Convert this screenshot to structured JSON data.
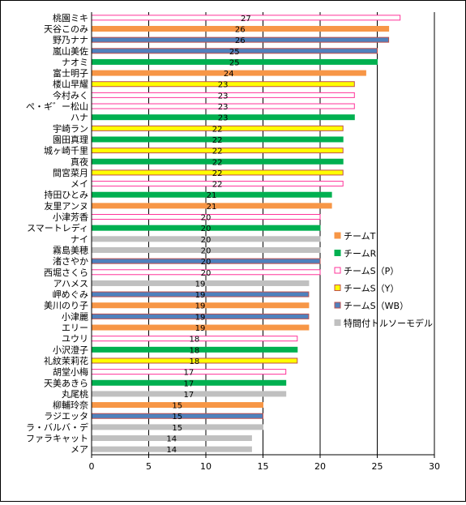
{
  "chart_data": {
    "type": "bar",
    "orientation": "horizontal",
    "xlim": [
      0,
      30
    ],
    "xticks": [
      0,
      5,
      10,
      15,
      20,
      25,
      30
    ],
    "grid": "vertical major gridlines",
    "legend_position": "right",
    "series": [
      {
        "name": "チームT",
        "color": "#F79646",
        "outline": "#F79646"
      },
      {
        "name": "チームR",
        "color": "#00B050",
        "outline": "#00B050"
      },
      {
        "name": "チームS（P）",
        "color": "#FFFFFF",
        "outline": "#FF3399"
      },
      {
        "name": "チームS（Y）",
        "color": "#FFFF00",
        "outline": "#C0504D"
      },
      {
        "name": "チームS（WB）",
        "color": "#4F81BD",
        "outline": "#C0504D"
      },
      {
        "name": "特間付トルソーモデル",
        "color": "#C0C0C0",
        "outline": "#C0C0C0"
      }
    ],
    "categories": [
      "桃園ミキ",
      "天谷このみ",
      "野乃ナナ",
      "嵐山美佐",
      "ナオミ",
      "富士明子",
      "楼山早耀",
      "今村みく",
      "ぺ・ギ゛ー松山",
      "ハナ",
      "宇崎ラン",
      "園田真理",
      "城ヶ崎千里",
      "真夜",
      "間宮菜月",
      "メイ",
      "持田ひとみ",
      "友里アンヌ",
      "小津芳香",
      "スマートレディ",
      "ナイ",
      "霧島美穂",
      "渚さやか",
      "西堀さくら",
      "アハメス",
      "岬めぐみ",
      "美川のり子",
      "小津麗",
      "エリー",
      "ユウリ",
      "小沢澄子",
      "礼紋茉莉花",
      "胡堂小梅",
      "天美あきら",
      "丸尾桃",
      "柳輔玲奈",
      "ラジエッタ",
      "ラ・バルバ・デ",
      "ファラキャット",
      "メア"
    ],
    "values": [
      27,
      26,
      26,
      25,
      25,
      24,
      23,
      23,
      23,
      23,
      22,
      22,
      22,
      22,
      22,
      22,
      21,
      21,
      20,
      20,
      20,
      20,
      20,
      20,
      19,
      19,
      19,
      19,
      19,
      18,
      18,
      18,
      17,
      17,
      17,
      15,
      15,
      15,
      14,
      14
    ],
    "bar_series": [
      2,
      0,
      4,
      4,
      1,
      0,
      3,
      2,
      2,
      1,
      3,
      1,
      3,
      1,
      3,
      2,
      1,
      0,
      2,
      1,
      5,
      5,
      4,
      2,
      5,
      4,
      0,
      4,
      0,
      2,
      1,
      3,
      2,
      1,
      5,
      0,
      4,
      5,
      5,
      5
    ]
  }
}
